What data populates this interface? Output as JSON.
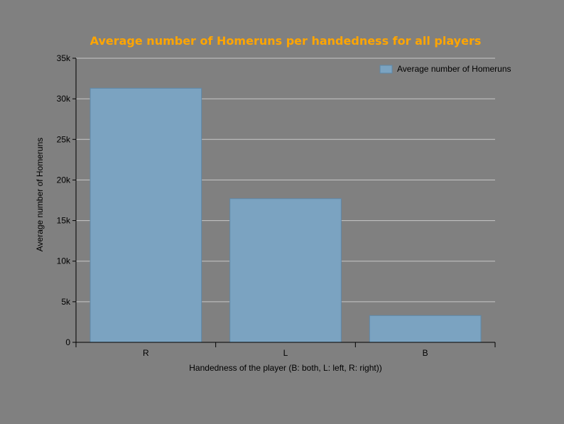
{
  "colors": {
    "background": "#808080",
    "title": "#FFA500",
    "bar_fill": "#7BA3C1",
    "bar_stroke": "#5E87A8",
    "grid": "#C8C8C8",
    "axis": "#000000"
  },
  "chart_data": {
    "type": "bar",
    "title": "Average number of Homeruns per handedness for all players",
    "xlabel": "Handedness of the player (B: both, L: left, R: right))",
    "ylabel": "Average number of Homeruns",
    "categories": [
      "R",
      "L",
      "B"
    ],
    "series": [
      {
        "name": "Average number of Homeruns",
        "values": [
          31300,
          17700,
          3300
        ]
      }
    ],
    "ylim": [
      0,
      35000
    ],
    "yticks": [
      0,
      5000,
      10000,
      15000,
      20000,
      25000,
      30000,
      35000
    ],
    "ytick_labels": [
      "0",
      "5k",
      "10k",
      "15k",
      "20k",
      "25k",
      "30k",
      "35k"
    ],
    "grid": true,
    "legend_position": "top-right"
  }
}
